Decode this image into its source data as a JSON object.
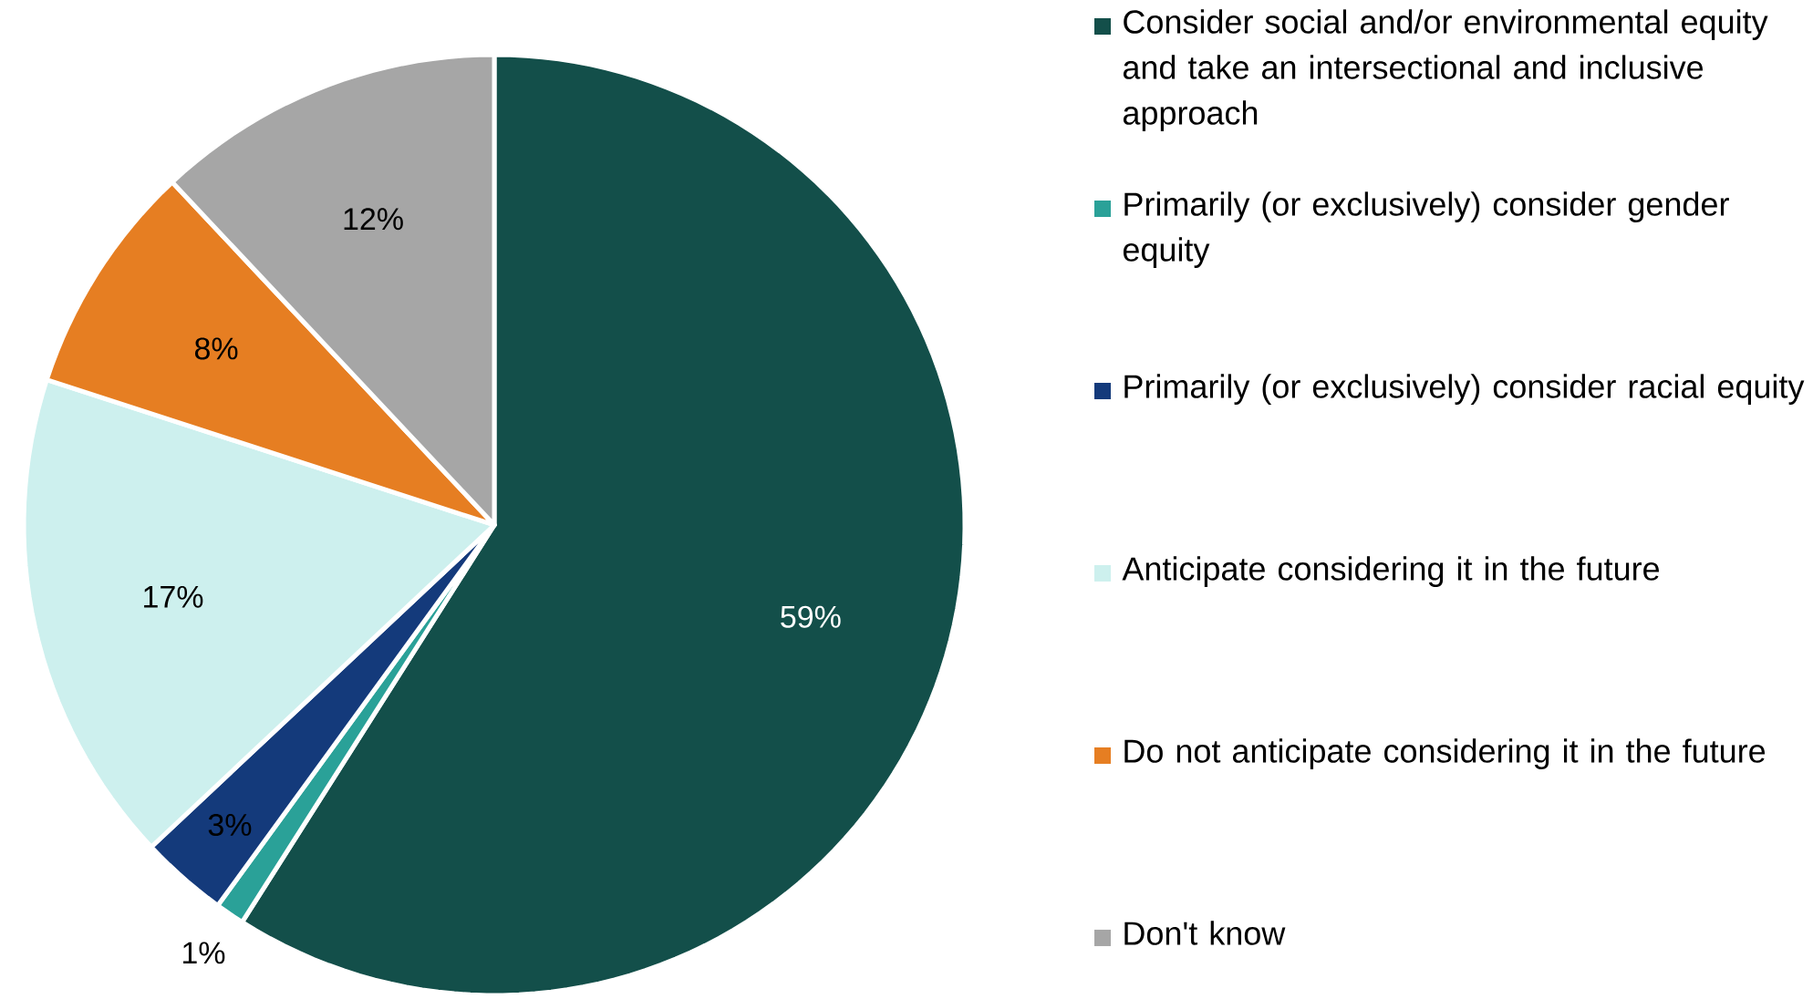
{
  "chart_data": {
    "type": "pie",
    "categories": [
      "Consider social and/or environmental equity and take an intersectional and inclusive approach",
      "Primarily (or exclusively) consider gender equity",
      "Primarily (or exclusively) consider racial equity",
      "Anticipate considering it in the future",
      "Do not anticipate considering it in the future",
      "Don't know"
    ],
    "values": [
      59,
      1,
      3,
      17,
      8,
      12
    ],
    "value_labels": [
      "59%",
      "1%",
      "3%",
      "17%",
      "8%",
      "12%"
    ],
    "colors": [
      "#134f4a",
      "#2aa198",
      "#143a7b",
      "#cdf0ee",
      "#e67e22",
      "#a6a6a6"
    ],
    "legend": "right"
  }
}
